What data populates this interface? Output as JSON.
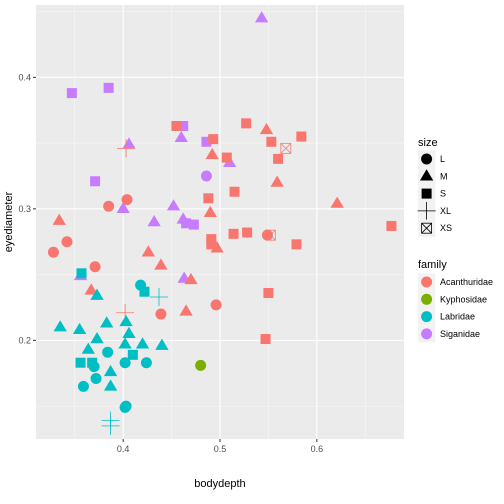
{
  "chart_data": {
    "type": "scatter",
    "xlabel": "bodydepth",
    "ylabel": "eyediameter",
    "xlim": [
      0.31,
      0.69
    ],
    "ylim": [
      0.125,
      0.455
    ],
    "x_ticks": [
      0.4,
      0.5,
      0.6
    ],
    "y_ticks": [
      0.2,
      0.3,
      0.4
    ],
    "x_tick_labels": [
      "0.4",
      "0.5",
      "0.6"
    ],
    "y_tick_labels": [
      "0.2",
      "0.3",
      "0.4"
    ],
    "grid": true,
    "legend_position": "right",
    "legends": {
      "size": {
        "title": "size",
        "items": [
          {
            "label": "L",
            "shape": "circle"
          },
          {
            "label": "M",
            "shape": "triangle"
          },
          {
            "label": "S",
            "shape": "square"
          },
          {
            "label": "XL",
            "shape": "plus"
          },
          {
            "label": "XS",
            "shape": "square-x"
          }
        ]
      },
      "family": {
        "title": "family",
        "items": [
          {
            "label": "Acanthuridae",
            "color": "#F8766D"
          },
          {
            "label": "Kyphosidae",
            "color": "#7CAE00"
          },
          {
            "label": "Labridae",
            "color": "#00BFC4"
          },
          {
            "label": "Siganidae",
            "color": "#C77CFF"
          }
        ]
      }
    },
    "points": [
      {
        "x": 0.543,
        "y": 0.445,
        "family": "Siganidae",
        "size": "M"
      },
      {
        "x": 0.347,
        "y": 0.388,
        "family": "Siganidae",
        "size": "S"
      },
      {
        "x": 0.385,
        "y": 0.392,
        "family": "Siganidae",
        "size": "S"
      },
      {
        "x": 0.462,
        "y": 0.363,
        "family": "Siganidae",
        "size": "S"
      },
      {
        "x": 0.46,
        "y": 0.354,
        "family": "Siganidae",
        "size": "M"
      },
      {
        "x": 0.486,
        "y": 0.351,
        "family": "Siganidae",
        "size": "S"
      },
      {
        "x": 0.406,
        "y": 0.349,
        "family": "Siganidae",
        "size": "M"
      },
      {
        "x": 0.51,
        "y": 0.335,
        "family": "Siganidae",
        "size": "M"
      },
      {
        "x": 0.486,
        "y": 0.325,
        "family": "Siganidae",
        "size": "L"
      },
      {
        "x": 0.371,
        "y": 0.321,
        "family": "Siganidae",
        "size": "S"
      },
      {
        "x": 0.4,
        "y": 0.3,
        "family": "Siganidae",
        "size": "M"
      },
      {
        "x": 0.452,
        "y": 0.302,
        "family": "Siganidae",
        "size": "M"
      },
      {
        "x": 0.462,
        "y": 0.292,
        "family": "Siganidae",
        "size": "M"
      },
      {
        "x": 0.432,
        "y": 0.29,
        "family": "Siganidae",
        "size": "M"
      },
      {
        "x": 0.465,
        "y": 0.289,
        "family": "Siganidae",
        "size": "S"
      },
      {
        "x": 0.473,
        "y": 0.288,
        "family": "Siganidae",
        "size": "S"
      },
      {
        "x": 0.463,
        "y": 0.247,
        "family": "Siganidae",
        "size": "M"
      },
      {
        "x": 0.356,
        "y": 0.249,
        "family": "Siganidae",
        "size": "M"
      },
      {
        "x": 0.455,
        "y": 0.363,
        "family": "Acanthuridae",
        "size": "S"
      },
      {
        "x": 0.527,
        "y": 0.365,
        "family": "Acanthuridae",
        "size": "S"
      },
      {
        "x": 0.548,
        "y": 0.36,
        "family": "Acanthuridae",
        "size": "M"
      },
      {
        "x": 0.584,
        "y": 0.355,
        "family": "Acanthuridae",
        "size": "S"
      },
      {
        "x": 0.493,
        "y": 0.353,
        "family": "Acanthuridae",
        "size": "S"
      },
      {
        "x": 0.553,
        "y": 0.351,
        "family": "Acanthuridae",
        "size": "S"
      },
      {
        "x": 0.403,
        "y": 0.346,
        "family": "Acanthuridae",
        "size": "XL"
      },
      {
        "x": 0.568,
        "y": 0.346,
        "family": "Acanthuridae",
        "size": "XS"
      },
      {
        "x": 0.492,
        "y": 0.341,
        "family": "Acanthuridae",
        "size": "M"
      },
      {
        "x": 0.507,
        "y": 0.339,
        "family": "Acanthuridae",
        "size": "S"
      },
      {
        "x": 0.56,
        "y": 0.338,
        "family": "Acanthuridae",
        "size": "S"
      },
      {
        "x": 0.559,
        "y": 0.32,
        "family": "Acanthuridae",
        "size": "M"
      },
      {
        "x": 0.515,
        "y": 0.313,
        "family": "Acanthuridae",
        "size": "S"
      },
      {
        "x": 0.488,
        "y": 0.308,
        "family": "Acanthuridae",
        "size": "S"
      },
      {
        "x": 0.404,
        "y": 0.307,
        "family": "Acanthuridae",
        "size": "L"
      },
      {
        "x": 0.621,
        "y": 0.304,
        "family": "Acanthuridae",
        "size": "M"
      },
      {
        "x": 0.385,
        "y": 0.302,
        "family": "Acanthuridae",
        "size": "L"
      },
      {
        "x": 0.49,
        "y": 0.297,
        "family": "Acanthuridae",
        "size": "M"
      },
      {
        "x": 0.334,
        "y": 0.291,
        "family": "Acanthuridae",
        "size": "M"
      },
      {
        "x": 0.677,
        "y": 0.287,
        "family": "Acanthuridae",
        "size": "S"
      },
      {
        "x": 0.528,
        "y": 0.282,
        "family": "Acanthuridae",
        "size": "S"
      },
      {
        "x": 0.514,
        "y": 0.281,
        "family": "Acanthuridae",
        "size": "S"
      },
      {
        "x": 0.549,
        "y": 0.28,
        "family": "Acanthuridae",
        "size": "L"
      },
      {
        "x": 0.552,
        "y": 0.28,
        "family": "Acanthuridae",
        "size": "XS"
      },
      {
        "x": 0.491,
        "y": 0.277,
        "family": "Acanthuridae",
        "size": "S"
      },
      {
        "x": 0.342,
        "y": 0.275,
        "family": "Acanthuridae",
        "size": "L"
      },
      {
        "x": 0.491,
        "y": 0.273,
        "family": "Acanthuridae",
        "size": "S"
      },
      {
        "x": 0.579,
        "y": 0.273,
        "family": "Acanthuridae",
        "size": "S"
      },
      {
        "x": 0.497,
        "y": 0.27,
        "family": "Acanthuridae",
        "size": "M"
      },
      {
        "x": 0.328,
        "y": 0.267,
        "family": "Acanthuridae",
        "size": "L"
      },
      {
        "x": 0.426,
        "y": 0.267,
        "family": "Acanthuridae",
        "size": "M"
      },
      {
        "x": 0.439,
        "y": 0.257,
        "family": "Acanthuridae",
        "size": "M"
      },
      {
        "x": 0.371,
        "y": 0.256,
        "family": "Acanthuridae",
        "size": "L"
      },
      {
        "x": 0.47,
        "y": 0.246,
        "family": "Acanthuridae",
        "size": "M"
      },
      {
        "x": 0.367,
        "y": 0.238,
        "family": "Acanthuridae",
        "size": "M"
      },
      {
        "x": 0.55,
        "y": 0.236,
        "family": "Acanthuridae",
        "size": "S"
      },
      {
        "x": 0.496,
        "y": 0.227,
        "family": "Acanthuridae",
        "size": "L"
      },
      {
        "x": 0.465,
        "y": 0.222,
        "family": "Acanthuridae",
        "size": "M"
      },
      {
        "x": 0.402,
        "y": 0.221,
        "family": "Acanthuridae",
        "size": "XL"
      },
      {
        "x": 0.439,
        "y": 0.22,
        "family": "Acanthuridae",
        "size": "L"
      },
      {
        "x": 0.547,
        "y": 0.201,
        "family": "Acanthuridae",
        "size": "S"
      },
      {
        "x": 0.48,
        "y": 0.181,
        "family": "Kyphosidae",
        "size": "L"
      },
      {
        "x": 0.357,
        "y": 0.251,
        "family": "Labridae",
        "size": "S"
      },
      {
        "x": 0.418,
        "y": 0.242,
        "family": "Labridae",
        "size": "L"
      },
      {
        "x": 0.422,
        "y": 0.237,
        "family": "Labridae",
        "size": "S"
      },
      {
        "x": 0.373,
        "y": 0.234,
        "family": "Labridae",
        "size": "M"
      },
      {
        "x": 0.437,
        "y": 0.233,
        "family": "Labridae",
        "size": "XL"
      },
      {
        "x": 0.335,
        "y": 0.21,
        "family": "Labridae",
        "size": "M"
      },
      {
        "x": 0.355,
        "y": 0.208,
        "family": "Labridae",
        "size": "M"
      },
      {
        "x": 0.383,
        "y": 0.213,
        "family": "Labridae",
        "size": "M"
      },
      {
        "x": 0.403,
        "y": 0.214,
        "family": "Labridae",
        "size": "M"
      },
      {
        "x": 0.406,
        "y": 0.205,
        "family": "Labridae",
        "size": "M"
      },
      {
        "x": 0.373,
        "y": 0.201,
        "family": "Labridae",
        "size": "M"
      },
      {
        "x": 0.364,
        "y": 0.193,
        "family": "Labridae",
        "size": "M"
      },
      {
        "x": 0.402,
        "y": 0.197,
        "family": "Labridae",
        "size": "M"
      },
      {
        "x": 0.42,
        "y": 0.197,
        "family": "Labridae",
        "size": "M"
      },
      {
        "x": 0.44,
        "y": 0.196,
        "family": "Labridae",
        "size": "M"
      },
      {
        "x": 0.384,
        "y": 0.191,
        "family": "Labridae",
        "size": "L"
      },
      {
        "x": 0.41,
        "y": 0.189,
        "family": "Labridae",
        "size": "S"
      },
      {
        "x": 0.356,
        "y": 0.183,
        "family": "Labridae",
        "size": "S"
      },
      {
        "x": 0.368,
        "y": 0.183,
        "family": "Labridae",
        "size": "S"
      },
      {
        "x": 0.37,
        "y": 0.18,
        "family": "Labridae",
        "size": "L"
      },
      {
        "x": 0.402,
        "y": 0.183,
        "family": "Labridae",
        "size": "L"
      },
      {
        "x": 0.424,
        "y": 0.183,
        "family": "Labridae",
        "size": "L"
      },
      {
        "x": 0.387,
        "y": 0.176,
        "family": "Labridae",
        "size": "M"
      },
      {
        "x": 0.372,
        "y": 0.171,
        "family": "Labridae",
        "size": "L"
      },
      {
        "x": 0.359,
        "y": 0.165,
        "family": "Labridae",
        "size": "L"
      },
      {
        "x": 0.387,
        "y": 0.165,
        "family": "Labridae",
        "size": "M"
      },
      {
        "x": 0.403,
        "y": 0.15,
        "family": "Labridae",
        "size": "L"
      },
      {
        "x": 0.402,
        "y": 0.149,
        "family": "Labridae",
        "size": "L"
      },
      {
        "x": 0.387,
        "y": 0.139,
        "family": "Labridae",
        "size": "XL"
      },
      {
        "x": 0.387,
        "y": 0.135,
        "family": "Labridae",
        "size": "XL"
      }
    ]
  }
}
